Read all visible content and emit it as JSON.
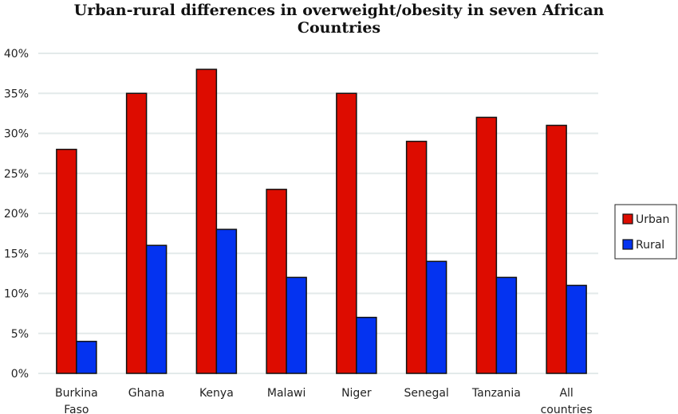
{
  "chart_data": {
    "type": "bar",
    "title": "Urban-rural differences in overweight/obesity in seven African Countries",
    "title_lines": [
      "Urban-rural differences in overweight/obesity in seven African",
      "Countries"
    ],
    "categories": [
      "Burkina Faso",
      "Ghana",
      "Kenya",
      "Malawi",
      "Niger",
      "Senegal",
      "Tanzania",
      "All countries"
    ],
    "category_lines": [
      [
        "Burkina",
        "Faso"
      ],
      [
        "Ghana"
      ],
      [
        "Kenya"
      ],
      [
        "Malawi"
      ],
      [
        "Niger"
      ],
      [
        "Senegal"
      ],
      [
        "Tanzania"
      ],
      [
        "All",
        "countries"
      ]
    ],
    "series": [
      {
        "name": "Urban",
        "color": "#dd0c00",
        "values": [
          28,
          35,
          38,
          23,
          35,
          29,
          32,
          31
        ]
      },
      {
        "name": "Rural",
        "color": "#0433f0",
        "values": [
          4,
          16,
          18,
          12,
          7,
          14,
          12,
          11
        ]
      }
    ],
    "xlabel": "",
    "ylabel": "",
    "ylim": [
      0,
      40
    ],
    "yticks": [
      0,
      5,
      10,
      15,
      20,
      25,
      30,
      35,
      40
    ],
    "ytick_labels": [
      "0%",
      "5%",
      "10%",
      "15%",
      "20%",
      "25%",
      "30%",
      "35%",
      "40%"
    ],
    "grid": true,
    "gridline_color": "#e3eaea",
    "bar_outline_color": "#111111",
    "legend_position": "right"
  }
}
